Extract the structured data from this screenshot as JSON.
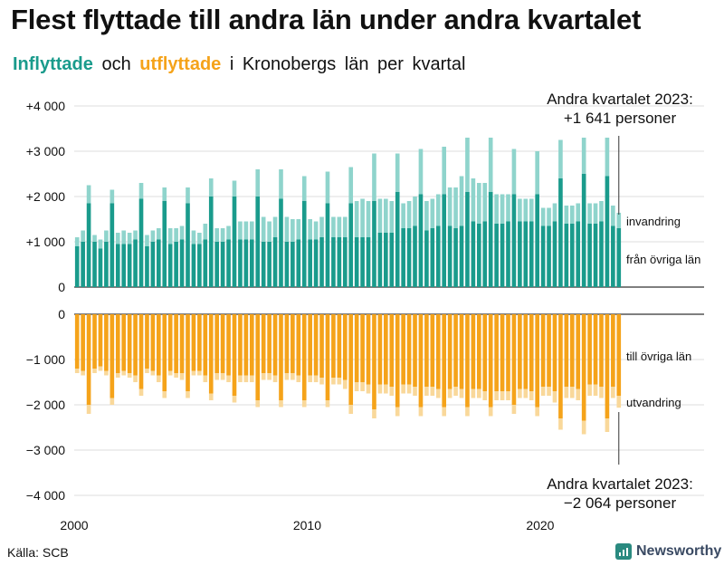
{
  "title": "Flest flyttade till andra län under andra kvartalet",
  "subtitle": {
    "inflyttade": "Inflyttade",
    "och": "och",
    "utflyttade": "utflyttade",
    "rest": "i Kronobergs län per kvartal"
  },
  "annotations": {
    "top_line1": "Andra kvartalet 2023:",
    "top_line2": "+1 641 personer",
    "bottom_line1": "Andra kvartalet 2023:",
    "bottom_line2": "−2 064 personer"
  },
  "legend": {
    "invandring": "invandring",
    "fran_ovriga_lan": "från övriga län",
    "till_ovriga_lan": "till övriga län",
    "utvandring": "utvandring"
  },
  "source": "Källa: SCB",
  "brand": "Newsworthy",
  "colors": {
    "in_dark": "#1a9b8c",
    "in_light": "#8fd4cc",
    "out_dark": "#f5a31a",
    "out_light": "#f9d89a",
    "grid": "#dddddd"
  },
  "chart_data": {
    "type": "bar",
    "title": "Flest flyttade till andra län under andra kvartalet",
    "subtitle": "Inflyttade och utflyttade i Kronobergs län per kvartal",
    "x_start": "2000 Q1",
    "x_end": "2023 Q2",
    "x_ticks": [
      "2000",
      "2010",
      "2020"
    ],
    "y_ticks": [
      "+4 000",
      "+3 000",
      "+2 000",
      "+1 000",
      "0",
      "−1 000",
      "−2 000",
      "−3 000",
      "−4 000"
    ],
    "ylim": [
      -4000,
      4000
    ],
    "stacked": true,
    "series": [
      {
        "name": "från övriga län",
        "values": [
          900,
          1000,
          1850,
          1000,
          850,
          1000,
          1850,
          950,
          950,
          950,
          1050,
          1950,
          900,
          1000,
          1050,
          1900,
          950,
          1000,
          1050,
          1850,
          950,
          950,
          1050,
          2000,
          1000,
          1000,
          1050,
          2000,
          1050,
          1050,
          1050,
          2000,
          1000,
          1000,
          1100,
          1950,
          1000,
          1000,
          1050,
          1900,
          1050,
          1050,
          1100,
          1850,
          1100,
          1100,
          1100,
          1850,
          1100,
          1100,
          1100,
          1900,
          1200,
          1200,
          1200,
          2100,
          1300,
          1300,
          1350,
          2050,
          1250,
          1300,
          1350,
          2050,
          1350,
          1300,
          1350,
          2100,
          1450,
          1400,
          1450,
          2100,
          1400,
          1400,
          1450,
          2050,
          1450,
          1450,
          1450,
          2050,
          1350,
          1350,
          1450,
          2400,
          1400,
          1400,
          1450,
          2500,
          1400,
          1400,
          1450,
          2450,
          1350,
          1300
        ]
      },
      {
        "name": "invandring",
        "values": [
          200,
          250,
          400,
          150,
          200,
          250,
          300,
          250,
          300,
          250,
          200,
          350,
          250,
          250,
          250,
          300,
          350,
          300,
          300,
          350,
          300,
          250,
          350,
          400,
          300,
          300,
          300,
          350,
          400,
          400,
          400,
          600,
          550,
          450,
          450,
          650,
          550,
          500,
          450,
          550,
          450,
          400,
          450,
          700,
          450,
          450,
          450,
          800,
          800,
          850,
          800,
          1050,
          750,
          750,
          700,
          850,
          550,
          600,
          650,
          1000,
          650,
          650,
          700,
          1050,
          850,
          900,
          1100,
          1200,
          950,
          900,
          850,
          1200,
          650,
          650,
          600,
          1000,
          500,
          500,
          500,
          950,
          400,
          400,
          400,
          850,
          400,
          400,
          400,
          800,
          450,
          450,
          450,
          850,
          450,
          341
        ]
      },
      {
        "name": "till övriga län",
        "values": [
          -1200,
          -1250,
          -2000,
          -1200,
          -1150,
          -1250,
          -1850,
          -1300,
          -1250,
          -1300,
          -1350,
          -1650,
          -1200,
          -1250,
          -1350,
          -1700,
          -1250,
          -1300,
          -1300,
          -1700,
          -1250,
          -1250,
          -1350,
          -1750,
          -1300,
          -1300,
          -1350,
          -1800,
          -1350,
          -1350,
          -1350,
          -1900,
          -1300,
          -1300,
          -1350,
          -1900,
          -1300,
          -1300,
          -1350,
          -1900,
          -1350,
          -1350,
          -1400,
          -1900,
          -1400,
          -1400,
          -1450,
          -2000,
          -1500,
          -1500,
          -1550,
          -2100,
          -1550,
          -1550,
          -1600,
          -2050,
          -1550,
          -1550,
          -1600,
          -2050,
          -1600,
          -1600,
          -1650,
          -2050,
          -1650,
          -1600,
          -1650,
          -2050,
          -1650,
          -1650,
          -1700,
          -2050,
          -1700,
          -1700,
          -1700,
          -2000,
          -1650,
          -1650,
          -1700,
          -2050,
          -1600,
          -1600,
          -1700,
          -2300,
          -1600,
          -1600,
          -1650,
          -2350,
          -1550,
          -1550,
          -1600,
          -2300,
          -1600,
          -1800
        ]
      },
      {
        "name": "utvandring",
        "values": [
          -100,
          -100,
          -200,
          -100,
          -100,
          -100,
          -150,
          -100,
          -100,
          -100,
          -150,
          -150,
          -100,
          -100,
          -150,
          -150,
          -100,
          -100,
          -150,
          -150,
          -100,
          -100,
          -150,
          -150,
          -150,
          -150,
          -150,
          -150,
          -150,
          -150,
          -150,
          -150,
          -150,
          -150,
          -150,
          -150,
          -150,
          -150,
          -150,
          -150,
          -150,
          -150,
          -150,
          -150,
          -150,
          -150,
          -200,
          -200,
          -200,
          -200,
          -200,
          -200,
          -200,
          -200,
          -200,
          -200,
          -200,
          -200,
          -200,
          -200,
          -200,
          -200,
          -200,
          -200,
          -200,
          -200,
          -200,
          -200,
          -200,
          -200,
          -200,
          -200,
          -200,
          -200,
          -200,
          -200,
          -200,
          -200,
          -200,
          -200,
          -200,
          -200,
          -250,
          -250,
          -250,
          -250,
          -250,
          -300,
          -250,
          -250,
          -250,
          -300,
          -250,
          -264
        ]
      }
    ]
  }
}
